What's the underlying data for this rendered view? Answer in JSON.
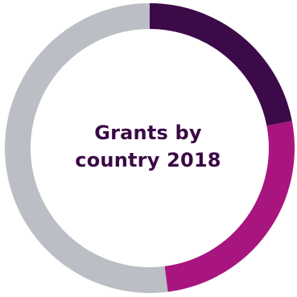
{
  "chart_data": {
    "type": "pie",
    "title": "Grants by\ncountry 2018",
    "start_angle_deg": 0,
    "direction": "clockwise",
    "slices": [
      {
        "value": 22,
        "color": "#3c0a48"
      },
      {
        "value": 26,
        "color": "#a8157f"
      },
      {
        "value": 52,
        "color": "#bcbec5"
      }
    ]
  }
}
